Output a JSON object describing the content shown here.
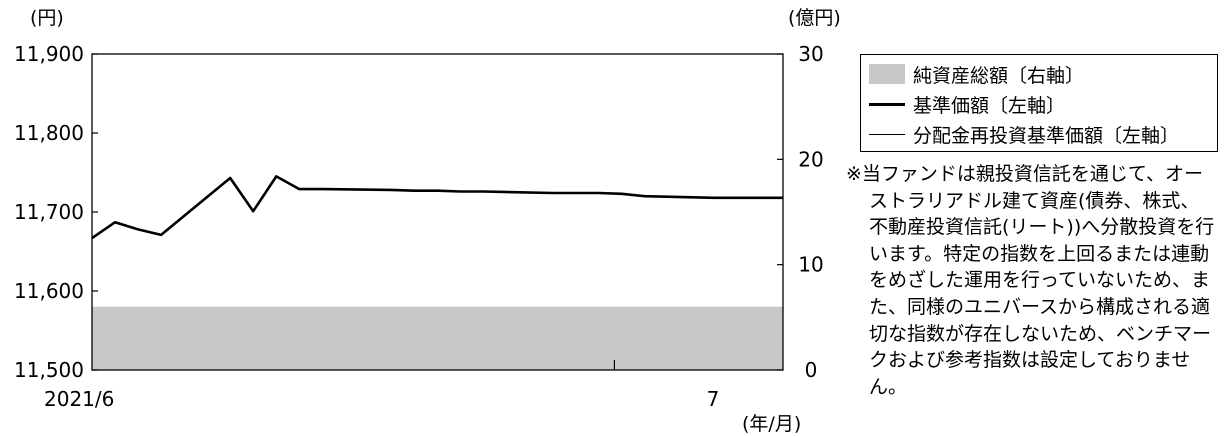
{
  "chart_data": {
    "type": "line",
    "left_axis": {
      "unit_label": "(円)",
      "min": 11500,
      "max": 11900,
      "ticks": [
        "11,500",
        "11,600",
        "11,700",
        "11,800",
        "11,900"
      ],
      "tick_values": [
        11500,
        11600,
        11700,
        11800,
        11900
      ]
    },
    "right_axis": {
      "unit_label": "(億円)",
      "min": 0,
      "max": 30,
      "ticks": [
        "0",
        "10",
        "20",
        "30"
      ],
      "tick_values": [
        0,
        10,
        20,
        30
      ]
    },
    "x_axis": {
      "unit_label": "(年/月)",
      "tick_labels": [
        "2021/6",
        "7"
      ],
      "domain": [
        "2021-06-15",
        "2021-07-15"
      ]
    },
    "series": [
      {
        "name": "純資産総額〔右軸〕",
        "kind": "area",
        "axis": "right",
        "color": "#c8c8c8",
        "points": [
          [
            "2021-06-15",
            6.0
          ],
          [
            "2021-07-15",
            6.0
          ]
        ]
      },
      {
        "name": "基準価額〔左軸〕",
        "kind": "line",
        "axis": "left",
        "color": "#000000",
        "points": [
          [
            "2021-06-15",
            11667
          ],
          [
            "2021-06-16",
            11687
          ],
          [
            "2021-06-17",
            11678
          ],
          [
            "2021-06-18",
            11671
          ],
          [
            "2021-06-21",
            11743
          ],
          [
            "2021-06-22",
            11701
          ],
          [
            "2021-06-23",
            11745
          ],
          [
            "2021-06-24",
            11729
          ],
          [
            "2021-06-25",
            11729
          ],
          [
            "2021-06-28",
            11728
          ],
          [
            "2021-06-29",
            11727
          ],
          [
            "2021-06-30",
            11727
          ],
          [
            "2021-07-01",
            11726
          ],
          [
            "2021-07-02",
            11726
          ],
          [
            "2021-07-05",
            11724
          ],
          [
            "2021-07-06",
            11724
          ],
          [
            "2021-07-07",
            11724
          ],
          [
            "2021-07-08",
            11723
          ],
          [
            "2021-07-09",
            11720
          ],
          [
            "2021-07-12",
            11718
          ],
          [
            "2021-07-13",
            11718
          ],
          [
            "2021-07-14",
            11718
          ],
          [
            "2021-07-15",
            11718
          ]
        ]
      },
      {
        "name": "分配金再投資基準価額〔左軸〕",
        "kind": "line",
        "axis": "left",
        "color": "#000000",
        "points": [
          [
            "2021-06-15",
            11667
          ],
          [
            "2021-06-16",
            11687
          ],
          [
            "2021-06-17",
            11678
          ],
          [
            "2021-06-18",
            11671
          ],
          [
            "2021-06-21",
            11743
          ],
          [
            "2021-06-22",
            11701
          ],
          [
            "2021-06-23",
            11745
          ],
          [
            "2021-06-24",
            11729
          ],
          [
            "2021-06-25",
            11729
          ],
          [
            "2021-06-28",
            11728
          ],
          [
            "2021-06-29",
            11727
          ],
          [
            "2021-06-30",
            11727
          ],
          [
            "2021-07-01",
            11726
          ],
          [
            "2021-07-02",
            11726
          ],
          [
            "2021-07-05",
            11724
          ],
          [
            "2021-07-06",
            11724
          ],
          [
            "2021-07-07",
            11724
          ],
          [
            "2021-07-08",
            11723
          ],
          [
            "2021-07-09",
            11720
          ],
          [
            "2021-07-12",
            11718
          ],
          [
            "2021-07-13",
            11718
          ],
          [
            "2021-07-14",
            11718
          ],
          [
            "2021-07-15",
            11718
          ]
        ]
      }
    ],
    "grid": false,
    "legend_position": "right"
  },
  "legend": {
    "items": [
      "純資産総額〔右軸〕",
      "基準価額〔左軸〕",
      "分配金再投資基準価額〔左軸〕"
    ]
  },
  "note": {
    "text": "※当ファンドは親投資信託を通じて、オーストラリアドル建て資産(債券、株式、不動産投資信託(リート))へ分散投資を行います。特定の指数を上回るまたは連動をめざした運用を行っていないため、また、同様のユニバースから構成される適切な指数が存在しないため、ベンチマークおよび参考指数は設定しておりません。"
  }
}
